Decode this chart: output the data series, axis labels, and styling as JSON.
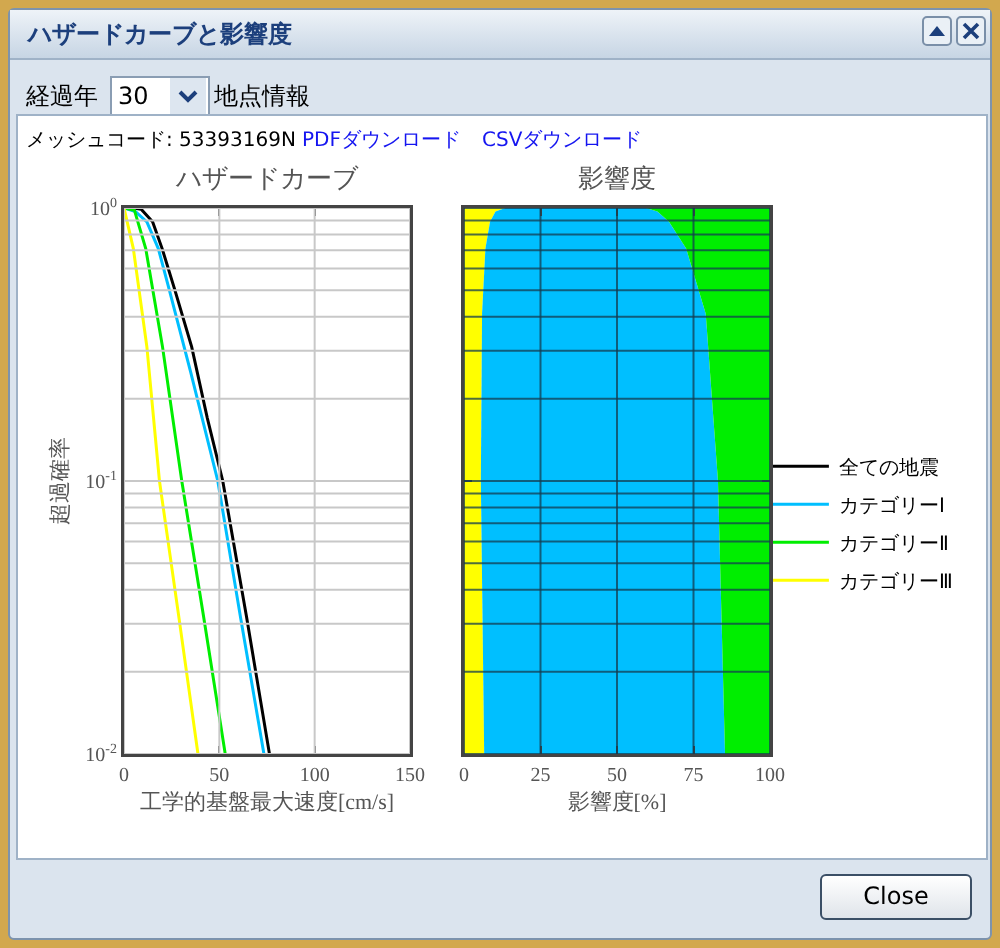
{
  "chart_data": [
    {
      "type": "other",
      "title": "ハザードカーブと影響度",
      "annotations": [
        "経過年",
        "30",
        "地点情報",
        "メッシュコード: 53393169N",
        "PDFダウンロード",
        "CSVダウンロード",
        "Close"
      ]
    },
    {
      "type": "line",
      "title": "ハザードカーブ",
      "xlabel": "工学的基盤最大速度[cm/s]",
      "ylabel": "超過確率",
      "xlim": [
        0,
        150
      ],
      "xticks": [
        0,
        50,
        100,
        150
      ],
      "ylim": [
        0.01,
        1
      ],
      "yticks": [
        {
          "value": 1,
          "label": "10$^{0}$"
        },
        {
          "value": 0.1,
          "label": "10$^{-1}$"
        },
        {
          "value": 0.01,
          "label": "10$^{-2}$"
        }
      ],
      "log": "y",
      "grid": true,
      "legend": "right",
      "marker": "none",
      "line_style": "solid",
      "series": [
        {
          "name": "全ての地震",
          "color": "#000000",
          "x": [
            0,
            5,
            9,
            15,
            20,
            26.7,
            35.5,
            43.7,
            51.8,
            64.2,
            76.3
          ],
          "values": [
            1,
            1,
            0.99,
            0.89,
            0.71,
            0.5,
            0.31,
            0.17,
            0.1,
            0.032,
            0.01
          ]
        },
        {
          "name": "カテゴリーⅠ",
          "color": "#00bfff",
          "x": [
            0,
            6,
            12,
            18,
            23.8,
            35,
            49.2,
            61,
            73.4
          ],
          "values": [
            1,
            0.97,
            0.89,
            0.71,
            0.5,
            0.25,
            0.1,
            0.032,
            0.01
          ]
        },
        {
          "name": "カテゴリーⅡ",
          "color": "#00ee00",
          "x": [
            0,
            5.5,
            11.4,
            20.2,
            30.3,
            41.7,
            53.1
          ],
          "values": [
            1,
            0.98,
            0.71,
            0.31,
            0.1,
            0.032,
            0.01
          ]
        },
        {
          "name": "カテゴリーⅢ",
          "color": "#ffff00",
          "x": [
            0,
            4.9,
            12,
            18.6,
            28.7,
            38.8
          ],
          "values": [
            1,
            0.71,
            0.31,
            0.1,
            0.032,
            0.01
          ]
        }
      ]
    },
    {
      "type": "area",
      "title": "影響度",
      "xlabel": "影響度[%]",
      "orientation": "horizontal",
      "stacked": true,
      "xlim": [
        0,
        100
      ],
      "xticks": [
        0,
        25,
        50,
        75,
        100
      ],
      "ylim": [
        0.01,
        1
      ],
      "yticks": [
        {
          "value": 1,
          "label": null
        },
        {
          "value": 0.1,
          "label": null
        },
        {
          "value": 0.01,
          "label": null
        }
      ],
      "log": "y",
      "grid": true,
      "tick_labels": "x",
      "x": [
        1,
        0.97,
        0.89,
        0.71,
        0.41,
        0.1,
        0.01
      ],
      "series": [
        {
          "color": "#ffff00",
          "values": [
            13.5,
            10.3,
            8.5,
            7,
            5.9,
            5.5,
            6.6
          ]
        },
        {
          "color": "#00bfff",
          "values": [
            46,
            52.9,
            58.5,
            65.6,
            73.1,
            77.5,
            78.7
          ]
        },
        {
          "color": "#00ee00",
          "values": [
            40.5,
            36.8,
            33,
            27.4,
            21,
            17,
            14.7
          ]
        }
      ]
    }
  ]
}
